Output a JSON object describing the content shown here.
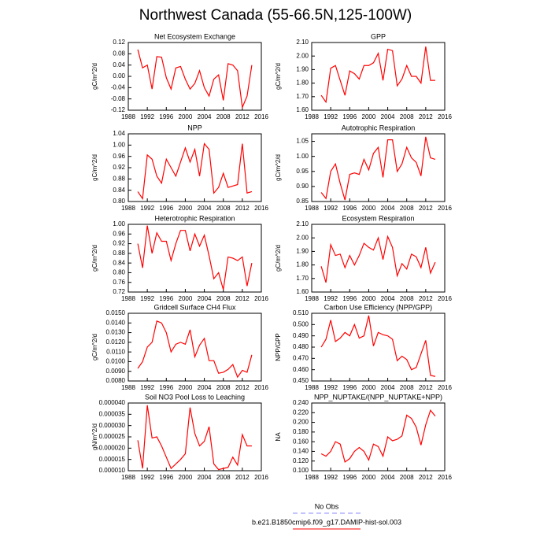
{
  "title": "Northwest Canada (55-66.5N,125-100W)",
  "legend": [
    {
      "name": "No Obs",
      "color": "#8888ff",
      "dash": true
    },
    {
      "name": "b.e21.B1850cmip6.f09_g17.DAMIP-hist-sol.003",
      "color": "#ff0000",
      "dash": false
    }
  ],
  "chart_data": [
    {
      "type": "line",
      "title": "Net Ecosystem Exchange",
      "y_label": "gC/m^2/d",
      "color": "#ff0000",
      "x": [
        1990,
        1991,
        1992,
        1993,
        1994,
        1995,
        1996,
        1997,
        1998,
        1999,
        2000,
        2001,
        2002,
        2003,
        2004,
        2005,
        2006,
        2007,
        2008,
        2009,
        2010,
        2011,
        2012,
        2013,
        2014
      ],
      "values": [
        0.095,
        0.03,
        0.04,
        -0.045,
        0.07,
        0.068,
        -0.005,
        -0.045,
        0.03,
        0.035,
        -0.01,
        -0.045,
        -0.025,
        0.02,
        -0.04,
        -0.07,
        -0.01,
        0.005,
        -0.085,
        0.045,
        0.04,
        0.02,
        -0.11,
        -0.07,
        0.04
      ],
      "xlim": [
        1988,
        2016
      ],
      "xticks": [
        1988,
        1992,
        1996,
        2000,
        2004,
        2008,
        2012,
        2016
      ],
      "ylim": [
        -0.12,
        0.12
      ],
      "yticks": [
        -0.12,
        -0.08,
        -0.04,
        {
          "value": 0,
          "label": "0.00"
        },
        0.04,
        0.08,
        0.12
      ]
    },
    {
      "type": "line",
      "title": "GPP",
      "y_label": "gC/m^2/d",
      "color": "#ff0000",
      "x": [
        1990,
        1991,
        1992,
        1993,
        1994,
        1995,
        1996,
        1997,
        1998,
        1999,
        2000,
        2001,
        2002,
        2003,
        2004,
        2005,
        2006,
        2007,
        2008,
        2009,
        2010,
        2011,
        2012,
        2013,
        2014
      ],
      "values": [
        1.71,
        1.66,
        1.91,
        1.93,
        1.82,
        1.71,
        1.89,
        1.87,
        1.83,
        1.93,
        1.93,
        1.95,
        2.02,
        1.82,
        2.05,
        2.04,
        1.78,
        1.83,
        1.93,
        1.85,
        1.85,
        1.8,
        2.07,
        1.82,
        1.82
      ],
      "xlim": [
        1988,
        2016
      ],
      "xticks": [
        1988,
        1992,
        1996,
        2000,
        2004,
        2008,
        2012,
        2016
      ],
      "ylim": [
        1.6,
        2.1
      ],
      "yticks": [
        {
          "value": 1.6,
          "label": "1.60"
        },
        {
          "value": 1.7,
          "label": "1.70"
        },
        {
          "value": 1.8,
          "label": "1.80"
        },
        {
          "value": 1.9,
          "label": "1.90"
        },
        {
          "value": 2.0,
          "label": "2.00"
        },
        {
          "value": 2.1,
          "label": "2.10"
        }
      ]
    },
    {
      "type": "line",
      "title": "NPP",
      "y_label": "gC/m^2/d",
      "color": "#ff0000",
      "x": [
        1990,
        1991,
        1992,
        1993,
        1994,
        1995,
        1996,
        1997,
        1998,
        1999,
        2000,
        2001,
        2002,
        2003,
        2004,
        2005,
        2006,
        2007,
        2008,
        2009,
        2010,
        2011,
        2012,
        2013,
        2014
      ],
      "values": [
        0.835,
        0.81,
        0.965,
        0.95,
        0.89,
        0.865,
        0.95,
        0.92,
        0.89,
        0.94,
        0.99,
        0.94,
        0.985,
        0.89,
        1.005,
        0.985,
        0.83,
        0.85,
        0.9,
        0.85,
        0.855,
        0.86,
        1.005,
        0.83,
        0.835
      ],
      "xlim": [
        1988,
        2016
      ],
      "xticks": [
        1988,
        1992,
        1996,
        2000,
        2004,
        2008,
        2012,
        2016
      ],
      "ylim": [
        0.8,
        1.04
      ],
      "yticks": [
        {
          "value": 0.8,
          "label": "0.80"
        },
        0.84,
        0.88,
        0.92,
        0.96,
        {
          "value": 1.0,
          "label": "1.00"
        },
        1.04
      ]
    },
    {
      "type": "line",
      "title": "Autotrophic Respiration",
      "y_label": "gC/m^2/d",
      "color": "#ff0000",
      "x": [
        1990,
        1991,
        1992,
        1993,
        1994,
        1995,
        1996,
        1997,
        1998,
        1999,
        2000,
        2001,
        2002,
        2003,
        2004,
        2005,
        2006,
        2007,
        2008,
        2009,
        2010,
        2011,
        2012,
        2013,
        2014
      ],
      "values": [
        0.88,
        0.86,
        0.95,
        0.975,
        0.91,
        0.855,
        0.94,
        0.945,
        0.94,
        0.99,
        0.955,
        1.01,
        1.03,
        0.93,
        1.055,
        1.055,
        0.95,
        0.975,
        1.03,
        0.995,
        0.98,
        0.935,
        1.065,
        0.995,
        0.99
      ],
      "xlim": [
        1988,
        2016
      ],
      "xticks": [
        1988,
        1992,
        1996,
        2000,
        2004,
        2008,
        2012,
        2016
      ],
      "ylim": [
        0.85,
        1.075
      ],
      "yticks": [
        0.85,
        {
          "value": 0.9,
          "label": "0.90"
        },
        0.95,
        {
          "value": 1.0,
          "label": "1.00"
        },
        1.05
      ]
    },
    {
      "type": "line",
      "title": "Heterotrophic Respiration",
      "y_label": "gC/m^2/d",
      "color": "#ff0000",
      "x": [
        1990,
        1991,
        1992,
        1993,
        1994,
        1995,
        1996,
        1997,
        1998,
        1999,
        2000,
        2001,
        2002,
        2003,
        2004,
        2005,
        2006,
        2007,
        2008,
        2009,
        2010,
        2011,
        2012,
        2013,
        2014
      ],
      "values": [
        0.92,
        0.82,
        0.995,
        0.88,
        0.965,
        0.93,
        0.93,
        0.85,
        0.92,
        0.975,
        0.975,
        0.89,
        0.96,
        0.91,
        0.955,
        0.87,
        0.775,
        0.8,
        0.73,
        0.865,
        0.86,
        0.85,
        0.865,
        0.745,
        0.84
      ],
      "xlim": [
        1988,
        2016
      ],
      "xticks": [
        1988,
        1992,
        1996,
        2000,
        2004,
        2008,
        2012,
        2016
      ],
      "ylim": [
        0.72,
        1.0
      ],
      "yticks": [
        0.72,
        0.76,
        {
          "value": 0.8,
          "label": "0.80"
        },
        0.84,
        0.88,
        0.92,
        0.96,
        {
          "value": 1.0,
          "label": "1.00"
        }
      ]
    },
    {
      "type": "line",
      "title": "Ecosystem Respiration",
      "y_label": "gC/m^2/d",
      "color": "#ff0000",
      "x": [
        1990,
        1991,
        1992,
        1993,
        1994,
        1995,
        1996,
        1997,
        1998,
        1999,
        2000,
        2001,
        2002,
        2003,
        2004,
        2005,
        2006,
        2007,
        2008,
        2009,
        2010,
        2011,
        2012,
        2013,
        2014
      ],
      "values": [
        1.79,
        1.67,
        1.95,
        1.87,
        1.88,
        1.78,
        1.87,
        1.8,
        1.87,
        1.96,
        1.93,
        1.91,
        2.0,
        1.84,
        2.01,
        1.93,
        1.72,
        1.81,
        1.77,
        1.88,
        1.86,
        1.78,
        1.93,
        1.74,
        1.82
      ],
      "xlim": [
        1988,
        2016
      ],
      "xticks": [
        1988,
        1992,
        1996,
        2000,
        2004,
        2008,
        2012,
        2016
      ],
      "ylim": [
        1.6,
        2.1
      ],
      "yticks": [
        {
          "value": 1.6,
          "label": "1.60"
        },
        {
          "value": 1.7,
          "label": "1.70"
        },
        {
          "value": 1.8,
          "label": "1.80"
        },
        {
          "value": 1.9,
          "label": "1.90"
        },
        {
          "value": 2.0,
          "label": "2.00"
        },
        {
          "value": 2.1,
          "label": "2.10"
        }
      ]
    },
    {
      "type": "line",
      "title": "Gridcell Surface CH4 Flux",
      "y_label": "gC/m^2/d",
      "color": "#ff0000",
      "x": [
        1990,
        1991,
        1992,
        1993,
        1994,
        1995,
        1996,
        1997,
        1998,
        1999,
        2000,
        2001,
        2002,
        2003,
        2004,
        2005,
        2006,
        2007,
        2008,
        2009,
        2010,
        2011,
        2012,
        2013,
        2014
      ],
      "values": [
        0.0093,
        0.01,
        0.0115,
        0.012,
        0.0142,
        0.014,
        0.013,
        0.011,
        0.0118,
        0.012,
        0.0118,
        0.0133,
        0.0105,
        0.0117,
        0.0124,
        0.0101,
        0.0101,
        0.0088,
        0.0089,
        0.0092,
        0.0097,
        0.0084,
        0.0091,
        0.0089,
        0.0107
      ],
      "xlim": [
        1988,
        2016
      ],
      "xticks": [
        1988,
        1992,
        1996,
        2000,
        2004,
        2008,
        2012,
        2016
      ],
      "ylim": [
        0.008,
        0.015
      ],
      "yticks": [
        {
          "value": 0.008,
          "label": "0.0080"
        },
        {
          "value": 0.009,
          "label": "0.0090"
        },
        {
          "value": 0.01,
          "label": "0.0100"
        },
        {
          "value": 0.011,
          "label": "0.0110"
        },
        {
          "value": 0.012,
          "label": "0.0120"
        },
        {
          "value": 0.013,
          "label": "0.0130"
        },
        {
          "value": 0.014,
          "label": "0.0140"
        },
        {
          "value": 0.015,
          "label": "0.0150"
        }
      ]
    },
    {
      "type": "line",
      "title": "Carbon Use Efficiency (NPP/GPP)",
      "y_label": "NPP/GPP",
      "color": "#ff0000",
      "x": [
        1990,
        1991,
        1992,
        1993,
        1994,
        1995,
        1996,
        1997,
        1998,
        1999,
        2000,
        2001,
        2002,
        2003,
        2004,
        2005,
        2006,
        2007,
        2008,
        2009,
        2010,
        2011,
        2012,
        2013,
        2014
      ],
      "values": [
        0.48,
        0.487,
        0.504,
        0.485,
        0.488,
        0.493,
        0.49,
        0.5,
        0.488,
        0.49,
        0.508,
        0.481,
        0.493,
        0.491,
        0.49,
        0.487,
        0.468,
        0.472,
        0.469,
        0.46,
        0.462,
        0.474,
        0.486,
        0.455,
        0.454
      ],
      "xlim": [
        1988,
        2016
      ],
      "xticks": [
        1988,
        1992,
        1996,
        2000,
        2004,
        2008,
        2012,
        2016
      ],
      "ylim": [
        0.45,
        0.51
      ],
      "yticks": [
        {
          "value": 0.45,
          "label": "0.450"
        },
        {
          "value": 0.46,
          "label": "0.460"
        },
        {
          "value": 0.47,
          "label": "0.470"
        },
        {
          "value": 0.48,
          "label": "0.480"
        },
        {
          "value": 0.49,
          "label": "0.490"
        },
        {
          "value": 0.5,
          "label": "0.500"
        },
        {
          "value": 0.51,
          "label": "0.510"
        }
      ]
    },
    {
      "type": "line",
      "title": "Soil NO3 Pool Loss to Leaching",
      "y_label": "gN/m^2/d",
      "color": "#ff0000",
      "x": [
        1990,
        1991,
        1992,
        1993,
        1994,
        1995,
        1996,
        1997,
        1998,
        1999,
        2000,
        2001,
        2002,
        2003,
        2004,
        2005,
        2006,
        2007,
        2008,
        2009,
        2010,
        2011,
        2012,
        2013,
        2014
      ],
      "values": [
        2.35e-05,
        1.1e-05,
        3.9e-05,
        2.45e-05,
        2.5e-05,
        2.1e-05,
        1.6e-05,
        1.1e-05,
        1.3e-05,
        1.5e-05,
        1.75e-05,
        3.8e-05,
        2.65e-05,
        2.1e-05,
        2.3e-05,
        2.95e-05,
        1.3e-05,
        1.05e-05,
        1.1e-05,
        1.15e-05,
        1.6e-05,
        1.25e-05,
        2.6e-05,
        2.1e-05,
        2.1e-05
      ],
      "xlim": [
        1988,
        2016
      ],
      "xticks": [
        1988,
        1992,
        1996,
        2000,
        2004,
        2008,
        2012,
        2016
      ],
      "ylim": [
        1e-05,
        4e-05
      ],
      "yticks": [
        {
          "value": 1e-05,
          "label": "0.000010"
        },
        {
          "value": 1.5e-05,
          "label": "0.000015"
        },
        {
          "value": 2e-05,
          "label": "0.000020"
        },
        {
          "value": 2.5e-05,
          "label": "0.000025"
        },
        {
          "value": 3e-05,
          "label": "0.000030"
        },
        {
          "value": 3.5e-05,
          "label": "0.000035"
        },
        {
          "value": 4e-05,
          "label": "0.000040"
        }
      ]
    },
    {
      "type": "line",
      "title": "NPP_NUPTAKE/(NPP_NUPTAKE+NPP)",
      "y_label": "NA",
      "color": "#ff0000",
      "x": [
        1990,
        1991,
        1992,
        1993,
        1994,
        1995,
        1996,
        1997,
        1998,
        1999,
        2000,
        2001,
        2002,
        2003,
        2004,
        2005,
        2006,
        2007,
        2008,
        2009,
        2010,
        2011,
        2012,
        2013,
        2014
      ],
      "values": [
        0.135,
        0.13,
        0.14,
        0.16,
        0.155,
        0.118,
        0.125,
        0.14,
        0.148,
        0.14,
        0.122,
        0.155,
        0.15,
        0.13,
        0.17,
        0.162,
        0.165,
        0.172,
        0.215,
        0.208,
        0.19,
        0.153,
        0.195,
        0.225,
        0.213
      ],
      "xlim": [
        1988,
        2016
      ],
      "xticks": [
        1988,
        1992,
        1996,
        2000,
        2004,
        2008,
        2012,
        2016
      ],
      "ylim": [
        0.1,
        0.24
      ],
      "yticks": [
        {
          "value": 0.1,
          "label": "0.100"
        },
        {
          "value": 0.12,
          "label": "0.120"
        },
        {
          "value": 0.14,
          "label": "0.140"
        },
        {
          "value": 0.16,
          "label": "0.160"
        },
        {
          "value": 0.18,
          "label": "0.180"
        },
        {
          "value": 0.2,
          "label": "0.200"
        },
        {
          "value": 0.22,
          "label": "0.220"
        },
        {
          "value": 0.24,
          "label": "0.240"
        }
      ]
    }
  ]
}
